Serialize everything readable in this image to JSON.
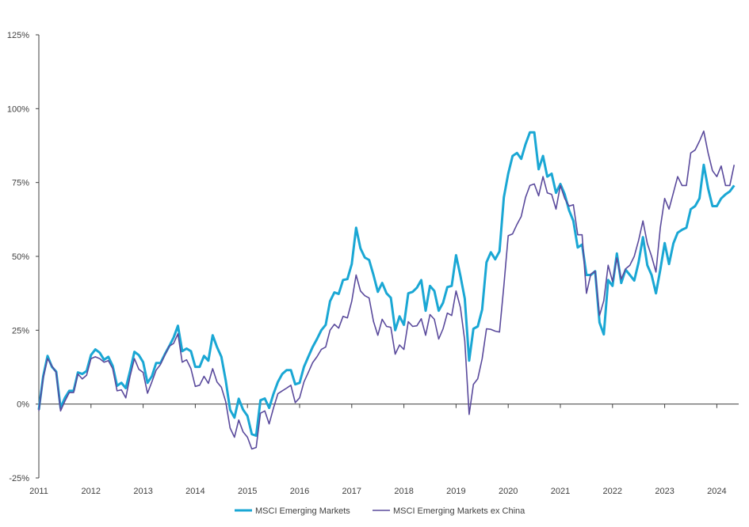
{
  "chart_data": {
    "type": "line",
    "title": "",
    "xlabel": "",
    "ylabel": "",
    "ylim": [
      -25,
      125
    ],
    "yticks": [
      -25,
      0,
      25,
      50,
      75,
      100,
      125
    ],
    "ytick_labels": [
      "-25%",
      "0%",
      "25%",
      "50%",
      "75%",
      "100%",
      "125%"
    ],
    "xlim": [
      "2011-01",
      "2024-05"
    ],
    "xtick_labels": [
      "2011",
      "2012",
      "2013",
      "2014",
      "2015",
      "2016",
      "2017",
      "2018",
      "2019",
      "2020",
      "2021",
      "2022",
      "2023",
      "2024"
    ],
    "grid": false,
    "legend_position": "bottom",
    "dates": [
      "2011-01",
      "2011-02",
      "2011-03",
      "2011-04",
      "2011-05",
      "2011-06",
      "2011-07",
      "2011-08",
      "2011-09",
      "2011-10",
      "2011-11",
      "2011-12",
      "2012-01",
      "2012-02",
      "2012-03",
      "2012-04",
      "2012-05",
      "2012-06",
      "2012-07",
      "2012-08",
      "2012-09",
      "2012-10",
      "2012-11",
      "2012-12",
      "2013-01",
      "2013-02",
      "2013-03",
      "2013-04",
      "2013-05",
      "2013-06",
      "2013-07",
      "2013-08",
      "2013-09",
      "2013-10",
      "2013-11",
      "2013-12",
      "2014-01",
      "2014-02",
      "2014-03",
      "2014-04",
      "2014-05",
      "2014-06",
      "2014-07",
      "2014-08",
      "2014-09",
      "2014-10",
      "2014-11",
      "2014-12",
      "2015-01",
      "2015-02",
      "2015-03",
      "2015-04",
      "2015-05",
      "2015-06",
      "2015-07",
      "2015-08",
      "2015-09",
      "2015-10",
      "2015-11",
      "2015-12",
      "2016-01",
      "2016-02",
      "2016-03",
      "2016-04",
      "2016-05",
      "2016-06",
      "2016-07",
      "2016-08",
      "2016-09",
      "2016-10",
      "2016-11",
      "2016-12",
      "2017-01",
      "2017-02",
      "2017-03",
      "2017-04",
      "2017-05",
      "2017-06",
      "2017-07",
      "2017-08",
      "2017-09",
      "2017-10",
      "2017-11",
      "2017-12",
      "2018-01",
      "2018-02",
      "2018-03",
      "2018-04",
      "2018-05",
      "2018-06",
      "2018-07",
      "2018-08",
      "2018-09",
      "2018-10",
      "2018-11",
      "2018-12",
      "2019-01",
      "2019-02",
      "2019-03",
      "2019-04",
      "2019-05",
      "2019-06",
      "2019-07",
      "2019-08",
      "2019-09",
      "2019-10",
      "2019-11",
      "2019-12",
      "2020-01",
      "2020-02",
      "2020-03",
      "2020-04",
      "2020-05",
      "2020-06",
      "2020-07",
      "2020-08",
      "2020-09",
      "2020-10",
      "2020-11",
      "2020-12",
      "2021-01",
      "2021-02",
      "2021-03",
      "2021-04",
      "2021-05",
      "2021-06",
      "2021-07",
      "2021-08",
      "2021-09",
      "2021-10",
      "2021-11",
      "2021-12",
      "2022-01",
      "2022-02",
      "2022-03",
      "2022-04",
      "2022-05",
      "2022-06",
      "2022-07",
      "2022-08",
      "2022-09",
      "2022-10",
      "2022-11",
      "2022-12",
      "2023-01",
      "2023-02",
      "2023-03",
      "2023-04",
      "2023-05",
      "2023-06",
      "2023-07",
      "2023-08",
      "2023-09",
      "2023-10",
      "2023-11",
      "2023-12",
      "2024-01",
      "2024-02",
      "2024-03",
      "2024-04",
      "2024-05"
    ],
    "series": [
      {
        "name": "MSCI Emerging Markets",
        "color": "#1aa7d4",
        "values": [
          -1.9,
          9.4,
          16.3,
          12.6,
          11,
          -1.3,
          2.1,
          4.5,
          4.5,
          10.7,
          10.2,
          11.2,
          16.6,
          18.5,
          17.4,
          15,
          16,
          12.9,
          6.2,
          7.2,
          5.4,
          11.2,
          17.7,
          16.6,
          14.2,
          7.2,
          9.4,
          13.9,
          13.9,
          16.9,
          19.6,
          22.5,
          26.5,
          17.9,
          18.8,
          17.9,
          12.6,
          12.6,
          16.3,
          14.7,
          23.3,
          19.3,
          16,
          8,
          -1.9,
          -4.6,
          1.8,
          -1.9,
          -4,
          -10.2,
          -10.7,
          1.3,
          1.9,
          -1.3,
          3.5,
          7.5,
          10.2,
          11.5,
          11.5,
          6.7,
          7.2,
          12.6,
          16,
          19.3,
          22,
          25,
          26.8,
          34.8,
          37.8,
          37.3,
          42,
          42.3,
          47.4,
          59.7,
          52.7,
          49.6,
          48.8,
          43.7,
          38,
          41,
          37.5,
          36,
          25,
          29.7,
          26.8,
          37.5,
          38,
          39.4,
          42,
          31.6,
          40,
          38.3,
          31.6,
          34.3,
          39.6,
          40,
          50.4,
          43.4,
          35.7,
          14.7,
          25.5,
          26.3,
          32,
          48,
          51.4,
          49,
          51.7,
          70,
          78,
          84,
          85,
          83,
          88,
          92,
          92,
          79.5,
          84,
          77,
          78,
          71.5,
          74.5,
          71,
          65.6,
          62,
          53,
          54,
          43.7,
          43.7,
          45,
          27.6,
          23.6,
          42,
          40,
          51,
          41,
          45.5,
          43.7,
          41.8,
          48,
          56.5,
          47,
          43.7,
          37.5,
          45.5,
          54.5,
          47.4,
          54.4,
          58,
          59,
          59.7,
          66,
          67,
          69.6,
          81,
          73,
          67,
          67,
          69.6,
          71,
          72,
          74
        ]
      },
      {
        "name": "MSCI Emerging Markets ex China",
        "color": "#5a4a9c",
        "values": [
          -2.3,
          8.9,
          15.4,
          12.9,
          10.7,
          -2.3,
          1,
          3.9,
          3.9,
          10.2,
          8.5,
          9.8,
          15.4,
          16,
          15.4,
          14.2,
          14.7,
          12,
          4.5,
          4.8,
          2.1,
          9.4,
          15.4,
          11.8,
          10.7,
          3.7,
          7.5,
          11.5,
          13.4,
          16.6,
          19.6,
          20.5,
          23.8,
          14.2,
          15,
          12,
          6,
          6.4,
          9.4,
          7,
          12,
          7.5,
          5.7,
          0.8,
          -8.1,
          -11.2,
          -5.4,
          -9.4,
          -11.2,
          -15.2,
          -14.7,
          -3.1,
          -2.3,
          -6.7,
          -1.3,
          3.5,
          4.5,
          5.4,
          6.4,
          0.5,
          2.1,
          7.5,
          10.7,
          14,
          16,
          18.5,
          19.3,
          25,
          27,
          25.7,
          29.7,
          29.2,
          34.8,
          43.7,
          38.3,
          36.7,
          35.9,
          28,
          23.3,
          28.7,
          26.3,
          26,
          16.9,
          20,
          18.5,
          27.9,
          26.3,
          26.5,
          28.9,
          23.3,
          30.3,
          28.7,
          22,
          25.5,
          30.8,
          30,
          38.3,
          32.7,
          21.4,
          -3.5,
          6.7,
          8.6,
          15.3,
          25.5,
          25.3,
          24.7,
          24.4,
          40,
          57,
          57.6,
          60.8,
          63.5,
          70,
          74,
          74.5,
          70.5,
          77,
          71.5,
          71,
          66,
          74,
          69.6,
          67,
          67.5,
          57.3,
          57.3,
          37.5,
          44,
          45,
          30,
          35,
          47,
          41.5,
          49.5,
          42.3,
          45.8,
          47,
          50,
          55.4,
          62,
          54.4,
          50,
          44.7,
          59.7,
          69.6,
          66,
          71.5,
          77,
          74,
          74,
          85,
          86,
          89,
          92.4,
          85,
          79,
          77,
          80.6,
          74,
          74,
          81
        ]
      }
    ]
  }
}
